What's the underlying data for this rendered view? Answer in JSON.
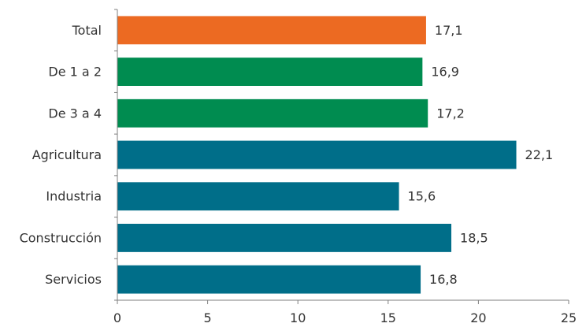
{
  "chart_data": {
    "type": "bar",
    "orientation": "horizontal",
    "title": "",
    "xlabel": "",
    "ylabel": "",
    "categories": [
      "Total",
      "De 1 a 2",
      "De 3 a 4",
      "Agricultura",
      "Industria",
      "Construcción",
      "Servicios"
    ],
    "values": [
      17.1,
      16.9,
      17.2,
      22.1,
      15.6,
      18.5,
      16.8
    ],
    "value_labels": [
      "17,1",
      "16,9",
      "17,2",
      "22,1",
      "15,6",
      "18,5",
      "16,8"
    ],
    "bar_colors": [
      "#ec6a22",
      "#008c50",
      "#008c50",
      "#006e89",
      "#006e89",
      "#006e89",
      "#006e89"
    ],
    "xlim": [
      0,
      25
    ],
    "xticks": [
      0,
      5,
      10,
      15,
      20,
      25
    ],
    "xtick_labels": [
      "0",
      "5",
      "10",
      "15",
      "20",
      "25"
    ],
    "grid": false,
    "legend": "none"
  }
}
